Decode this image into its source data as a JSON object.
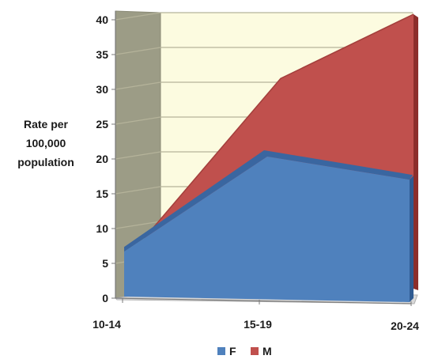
{
  "chart_data": {
    "type": "area",
    "title": "",
    "xlabel": "",
    "ylabel": [
      "Rate per",
      "100,000",
      "population"
    ],
    "categories": [
      "10-14",
      "15-19",
      "20-24"
    ],
    "yticks": [
      "0",
      "5",
      "10",
      "15",
      "20",
      "25",
      "30",
      "35",
      "40"
    ],
    "ylim": [
      0,
      40
    ],
    "series": [
      {
        "name": "M",
        "values": [
          8,
          31,
          40
        ],
        "color": "#c0504d"
      },
      {
        "name": "F",
        "values": [
          6,
          20,
          16
        ],
        "color": "#4f81bd"
      }
    ],
    "grid": true,
    "three_d": true,
    "legend": {
      "position": "bottom",
      "entries": [
        "F",
        "M"
      ]
    },
    "colors": {
      "back_wall": "#fcfbe0",
      "side_wall": "#9c9c86",
      "gridline": "#b5b39a"
    }
  }
}
